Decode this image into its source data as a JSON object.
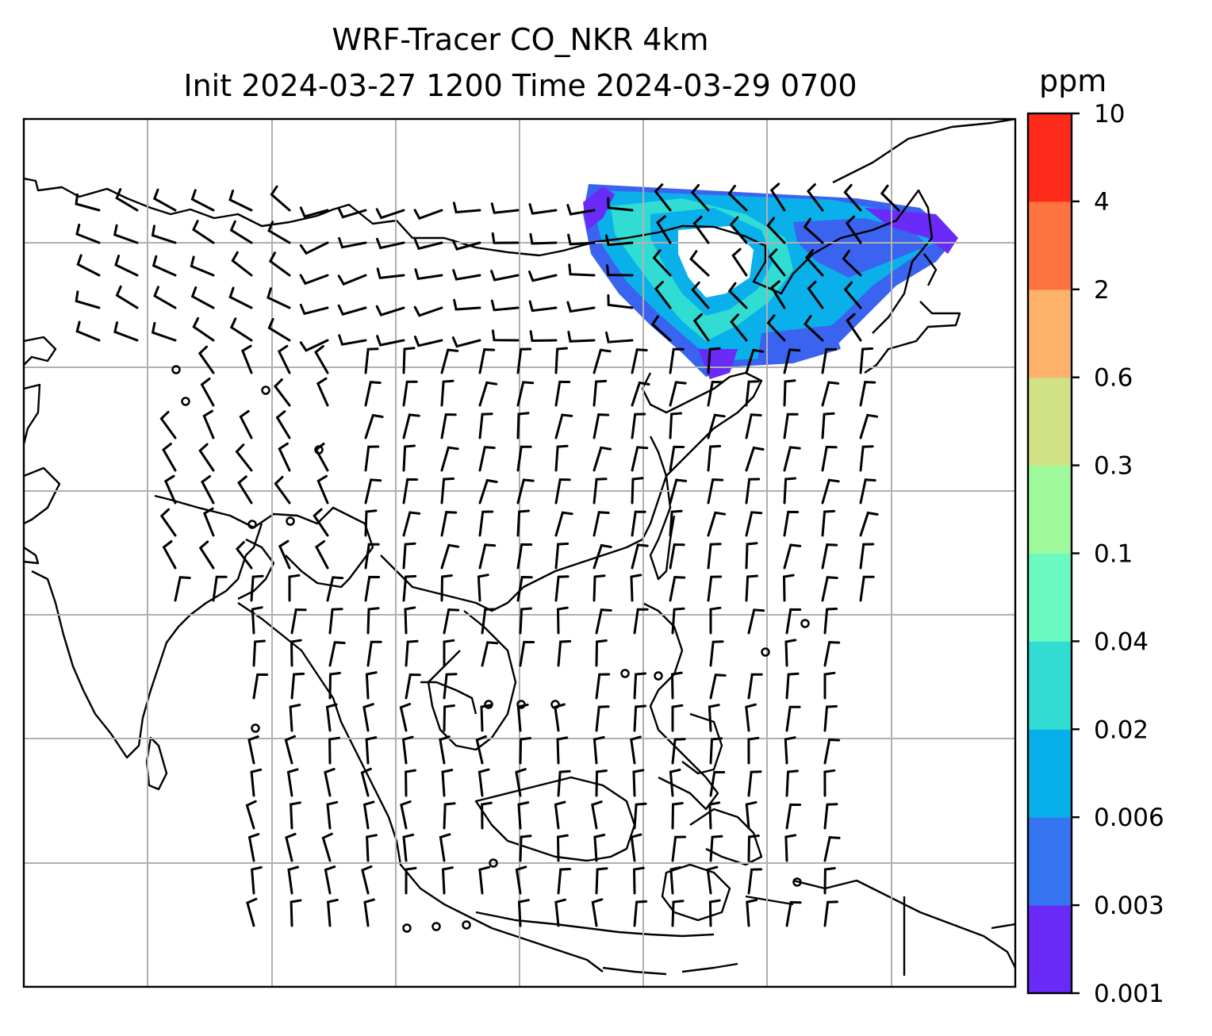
{
  "title": {
    "line1": "WRF-Tracer CO_NKR 4km",
    "line2": "Init 2024-03-27 1200 Time 2024-03-29 0700"
  },
  "colorbar": {
    "unit": "ppm",
    "levels": [
      "0.001",
      "0.003",
      "0.006",
      "0.02",
      "0.04",
      "0.1",
      "0.3",
      "0.6",
      "2",
      "4",
      "10"
    ],
    "colors": [
      "#6a2af7",
      "#3575f2",
      "#06b0ea",
      "#31dcd3",
      "#6af9c1",
      "#9efa9a",
      "#d0e186",
      "#feb16a",
      "#ff7340",
      "#ff2b1a"
    ]
  },
  "map": {
    "grid_color": "#b0b0b0",
    "coast_color": "#000000",
    "plume": "CO_NKR tracer plume over northern boundary region"
  }
}
